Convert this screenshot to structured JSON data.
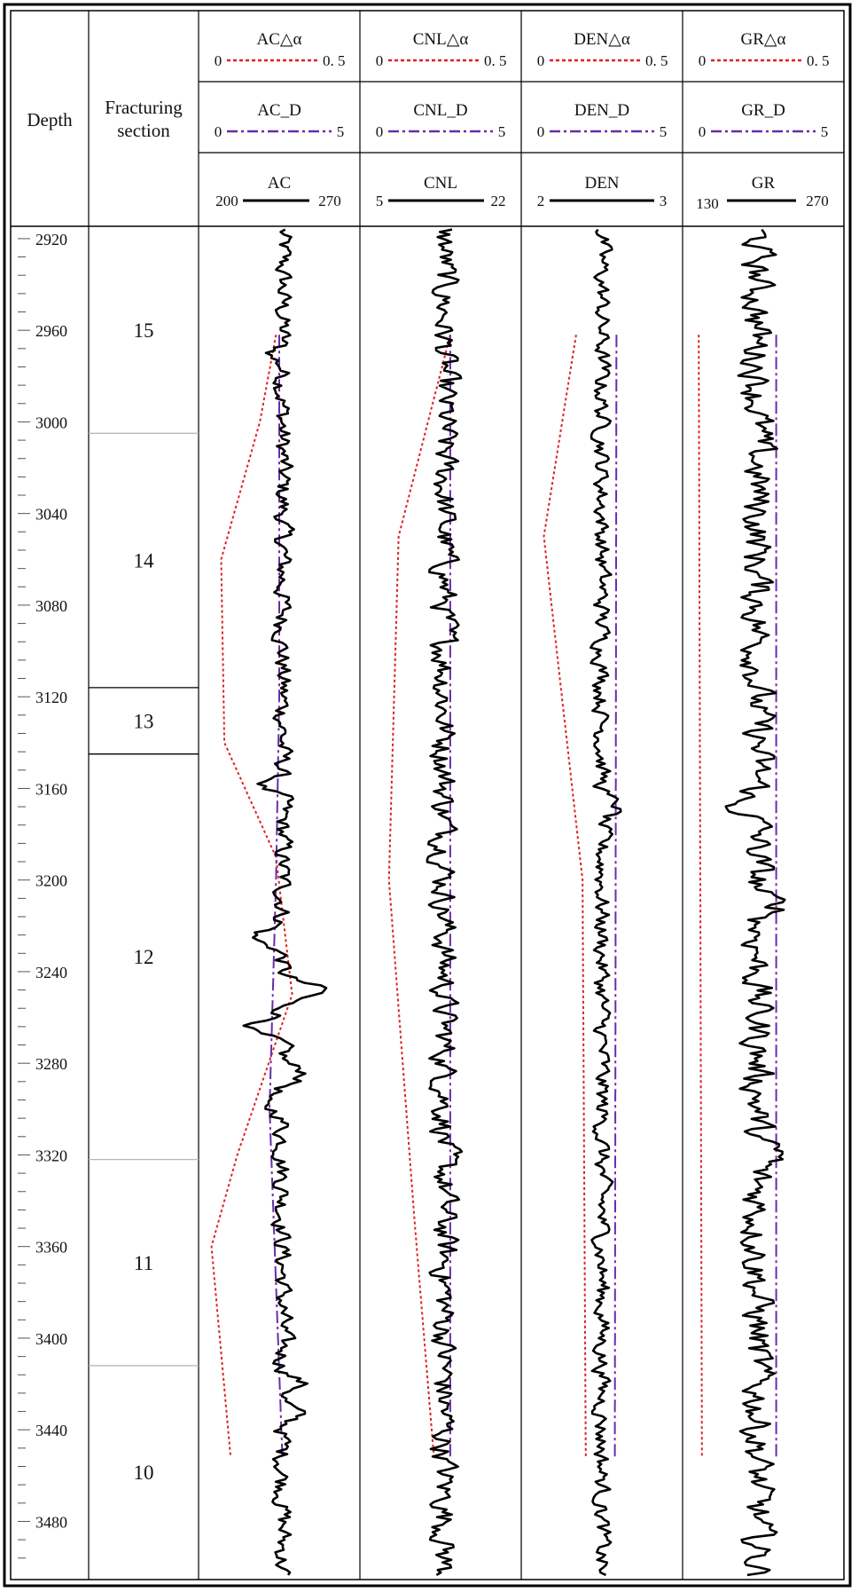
{
  "header": {
    "depth_label": "Depth",
    "fracturing_label_line1": "Fracturing",
    "fracturing_label_line2": "section"
  },
  "tracks": [
    {
      "delta_label": "AC△α",
      "delta_min": "0",
      "delta_max": "0. 5",
      "d_label": "AC_D",
      "d_min": "0",
      "d_max": "5",
      "curve_label": "AC",
      "curve_min": "200",
      "curve_max": "270"
    },
    {
      "delta_label": "CNL△α",
      "delta_min": "0",
      "delta_max": "0. 5",
      "d_label": "CNL_D",
      "d_min": "0",
      "d_max": "5",
      "curve_label": "CNL",
      "curve_min": "5",
      "curve_max": "22"
    },
    {
      "delta_label": "DEN△α",
      "delta_min": "0",
      "delta_max": "0. 5",
      "d_label": "DEN_D",
      "d_min": "0",
      "d_max": "5",
      "curve_label": "DEN",
      "curve_min": "2",
      "curve_max": "3"
    },
    {
      "delta_label": "GR△α",
      "delta_min": "0",
      "delta_max": "0. 5",
      "d_label": "GR_D",
      "d_min": "0",
      "d_max": "5",
      "curve_label": "GR",
      "curve_min": "130",
      "curve_max": "270"
    }
  ],
  "colors": {
    "delta_curve": "#e02020",
    "d_curve": "#6a2ca8",
    "log_curve": "#000000",
    "grid": "#000000",
    "section_divider": "#b8b8b8"
  },
  "chart_data": {
    "type": "line",
    "orientation": "vertical-depth",
    "depth_range": [
      2915,
      3505
    ],
    "depth_ticks": [
      2920,
      2960,
      3000,
      3040,
      3080,
      3120,
      3160,
      3200,
      3240,
      3280,
      3320,
      3360,
      3400,
      3440,
      3480
    ],
    "fracturing_sections": [
      {
        "label": "15",
        "top": 2915,
        "bottom": 3005
      },
      {
        "label": "14",
        "top": 3005,
        "bottom": 3116
      },
      {
        "label": "13",
        "top": 3116,
        "bottom": 3145
      },
      {
        "label": "12",
        "top": 3145,
        "bottom": 3322
      },
      {
        "label": "11",
        "top": 3322,
        "bottom": 3412
      },
      {
        "label": "10",
        "top": 3412,
        "bottom": 3505
      }
    ],
    "series": [
      {
        "name": "AC△α",
        "track": 0,
        "points": [
          [
            2962,
            0.24
          ],
          [
            3000,
            0.19
          ],
          [
            3060,
            0.07
          ],
          [
            3140,
            0.08
          ],
          [
            3190,
            0.24
          ],
          [
            3250,
            0.29
          ],
          [
            3320,
            0.12
          ],
          [
            3360,
            0.04
          ],
          [
            3453,
            0.1
          ]
        ]
      },
      {
        "name": "AC_D",
        "track": 0,
        "points": [
          [
            2962,
            2.5
          ],
          [
            3120,
            2.5
          ],
          [
            3200,
            2.4
          ],
          [
            3300,
            2.2
          ],
          [
            3453,
            2.6
          ]
        ]
      },
      {
        "name": "AC",
        "track": 0,
        "baseline": 236.5,
        "noise": 3.5,
        "excursions": [
          [
            2972,
            -12
          ],
          [
            2972.8,
            8
          ],
          [
            3160,
            -15
          ],
          [
            3161.5,
            8
          ],
          [
            3225,
            -13
          ],
          [
            3248,
            17
          ],
          [
            3265,
            -14
          ],
          [
            3285,
            10
          ],
          [
            3297,
            -10
          ],
          [
            3420,
            8
          ],
          [
            3433,
            6
          ]
        ]
      },
      {
        "name": "CNL△α",
        "track": 1,
        "points": [
          [
            2962,
            0.28
          ],
          [
            3050,
            0.12
          ],
          [
            3200,
            0.09
          ],
          [
            3350,
            0.17
          ],
          [
            3453,
            0.23
          ]
        ]
      },
      {
        "name": "CNL_D",
        "track": 1,
        "points": [
          [
            2962,
            2.8
          ],
          [
            3453,
            2.8
          ]
        ]
      },
      {
        "name": "CNL",
        "track": 1,
        "baseline": 13.9,
        "noise": 1.2,
        "excursions": []
      },
      {
        "name": "DEN△α",
        "track": 2,
        "points": [
          [
            2962,
            0.17
          ],
          [
            3050,
            0.07
          ],
          [
            3200,
            0.19
          ],
          [
            3453,
            0.2
          ]
        ]
      },
      {
        "name": "DEN_D",
        "track": 2,
        "points": [
          [
            2962,
            2.95
          ],
          [
            3453,
            2.9
          ]
        ]
      },
      {
        "name": "DEN",
        "track": 2,
        "baseline": 2.5,
        "noise": 0.045,
        "excursions": [
          [
            3168,
            0.1
          ]
        ]
      },
      {
        "name": "GR△α",
        "track": 3,
        "points": [
          [
            2962,
            0.05
          ],
          [
            3453,
            0.06
          ]
        ]
      },
      {
        "name": "GR_D",
        "track": 3,
        "points": [
          [
            2962,
            2.9
          ],
          [
            3453,
            2.9
          ]
        ]
      },
      {
        "name": "GR",
        "track": 3,
        "baseline": 195,
        "noise": 12,
        "excursions": [
          [
            3167,
            -22
          ],
          [
            3212,
            22
          ],
          [
            3320,
            18
          ]
        ]
      }
    ]
  }
}
